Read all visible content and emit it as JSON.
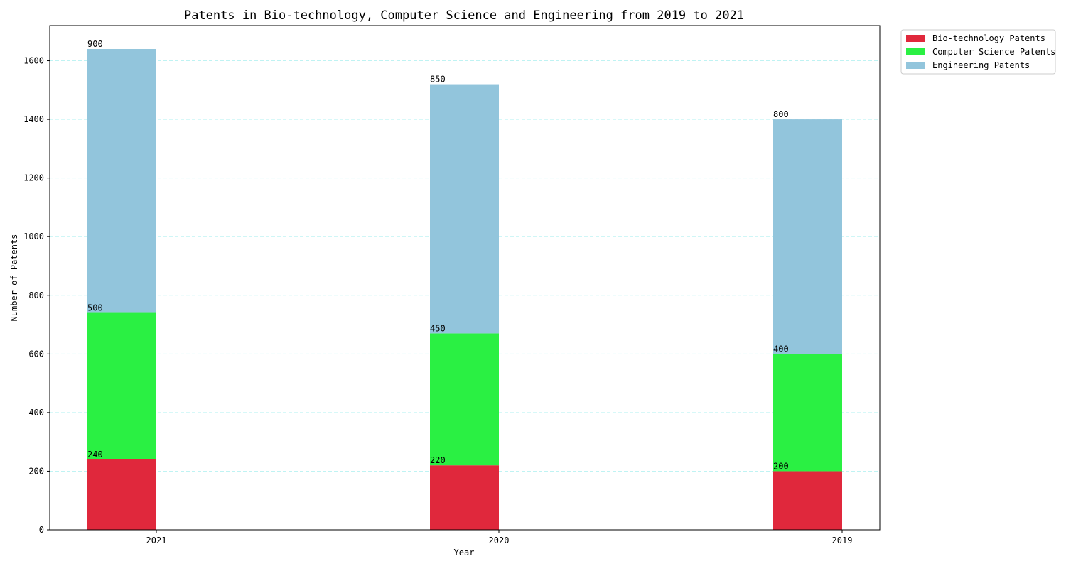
{
  "chart_data": {
    "type": "bar",
    "stacked": true,
    "title": "Patents in Bio-technology, Computer Science and Engineering from 2019 to 2021",
    "xlabel": "Year",
    "ylabel": "Number of Patents",
    "categories": [
      "2021",
      "2020",
      "2019"
    ],
    "series": [
      {
        "name": "Bio-technology Patents",
        "values": [
          240,
          220,
          200
        ],
        "color": "#e0283c"
      },
      {
        "name": "Computer Science Patents",
        "values": [
          500,
          450,
          400
        ],
        "color": "#2af043"
      },
      {
        "name": "Engineering Patents",
        "values": [
          900,
          850,
          800
        ],
        "color": "#92c5dc"
      }
    ],
    "ylim": [
      0,
      1720
    ],
    "yticks": [
      0,
      200,
      400,
      600,
      800,
      1000,
      1200,
      1400,
      1600
    ],
    "grid": {
      "axis": "y",
      "style": "dashed",
      "color": "#bff3f3"
    },
    "legend_position": "top-right-outside"
  }
}
